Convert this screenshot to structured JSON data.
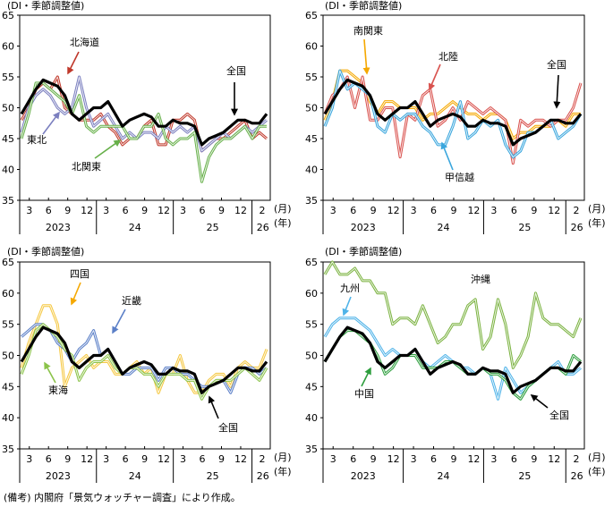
{
  "footnote": "(備考) 内閣府「景気ウォッチャー調査」により作成。",
  "chart_data": [
    {
      "type": "line",
      "unit_label": "(DI・季節調整値)",
      "ylim": [
        35,
        65
      ],
      "yticks": [
        35,
        40,
        45,
        50,
        55,
        60,
        65
      ],
      "month_ticks": [
        "3",
        "6",
        "9",
        "12",
        "3",
        "6",
        "9",
        "12",
        "3",
        "6",
        "9",
        "12",
        "2"
      ],
      "year_labels": [
        "2023",
        "24",
        "25",
        "26"
      ],
      "month_unit": "(月)",
      "year_unit": "(年)",
      "series": [
        {
          "name": "北海道",
          "color": "#c0392b",
          "values": [
            48,
            50,
            53,
            54,
            53,
            55,
            50,
            49,
            48,
            48,
            48,
            49,
            47,
            46,
            44,
            45,
            45,
            47,
            48,
            44,
            44,
            48,
            48,
            49,
            48,
            43,
            44,
            45,
            45,
            46,
            47,
            48,
            45,
            46,
            45
          ]
        },
        {
          "name": "東北",
          "color": "#7b7fbf",
          "values": [
            46,
            50,
            52,
            53,
            52,
            50,
            49,
            50,
            55,
            50,
            47,
            48,
            49,
            47,
            45,
            46,
            45,
            46,
            46,
            45,
            47,
            46,
            47,
            46,
            47,
            43,
            44,
            45,
            46,
            45,
            46,
            47,
            46,
            47,
            48
          ]
        },
        {
          "name": "北関東",
          "color": "#67b04a",
          "values": [
            45,
            49,
            54,
            54,
            53,
            52,
            51,
            49,
            52,
            47,
            46,
            47,
            47,
            47,
            47,
            45,
            45,
            47,
            47,
            49,
            45,
            44,
            45,
            45,
            46,
            38,
            42,
            44,
            45,
            45,
            46,
            47,
            45,
            47,
            47
          ]
        },
        {
          "name": "全国",
          "color": "#000000",
          "values": [
            49,
            51,
            53,
            54.5,
            54,
            53.5,
            52,
            49,
            48,
            49,
            50,
            50,
            51,
            49,
            47,
            48,
            48.5,
            49,
            48.5,
            47,
            47,
            48,
            47.5,
            47.5,
            47,
            44,
            45,
            45.5,
            46,
            47,
            48,
            48,
            47.5,
            47.5,
            49
          ]
        }
      ],
      "annotations": [
        "北海道",
        "東北",
        "北関東",
        "全国"
      ]
    },
    {
      "type": "line",
      "unit_label": "(DI・季節調整値)",
      "ylim": [
        35,
        65
      ],
      "yticks": [
        35,
        40,
        45,
        50,
        55,
        60,
        65
      ],
      "month_ticks": [
        "3",
        "6",
        "9",
        "12",
        "3",
        "6",
        "9",
        "12",
        "3",
        "6",
        "9",
        "12",
        "2"
      ],
      "year_labels": [
        "2023",
        "24",
        "25",
        "26"
      ],
      "month_unit": "(月)",
      "year_unit": "(年)",
      "series": [
        {
          "name": "南関東",
          "color": "#f5a800",
          "values": [
            48,
            51,
            56,
            56,
            55,
            54,
            51,
            49,
            51,
            51,
            50,
            50,
            50,
            48,
            49,
            49,
            50,
            51,
            50,
            49,
            49,
            48,
            49,
            49,
            48,
            45,
            46,
            46,
            47,
            47,
            47,
            48,
            47,
            49,
            49
          ]
        },
        {
          "name": "北陸",
          "color": "#d9534f",
          "values": [
            49,
            52,
            53,
            55,
            50,
            55,
            48,
            48,
            50,
            50,
            42,
            49,
            48,
            52,
            53,
            47,
            48,
            50,
            48,
            51,
            50,
            49,
            50,
            49,
            48,
            41,
            48,
            47,
            48,
            48,
            47,
            48,
            48,
            50,
            54
          ]
        },
        {
          "name": "甲信越",
          "color": "#3aa6dd",
          "values": [
            47,
            50,
            56,
            53,
            54,
            53,
            52,
            47,
            46,
            49,
            48,
            49,
            49,
            47,
            46,
            44,
            44,
            47,
            51,
            45,
            46,
            48,
            47,
            48,
            44,
            42,
            43,
            46,
            46,
            47,
            48,
            45,
            46,
            47,
            49
          ]
        },
        {
          "name": "全国",
          "color": "#000000",
          "values": [
            49,
            51,
            53,
            54.5,
            54,
            53.5,
            52,
            49,
            48,
            49,
            50,
            50,
            51,
            49,
            47,
            48,
            48.5,
            49,
            48.5,
            47,
            47,
            48,
            47.5,
            47.5,
            47,
            44,
            45,
            45.5,
            46,
            47,
            48,
            48,
            47.5,
            47.5,
            49
          ]
        }
      ],
      "annotations": [
        "南関東",
        "北陸",
        "全国",
        "甲信越"
      ]
    },
    {
      "type": "line",
      "unit_label": "(DI・季節調整値)",
      "ylim": [
        35,
        65
      ],
      "yticks": [
        35,
        40,
        45,
        50,
        55,
        60,
        65
      ],
      "month_ticks": [
        "3",
        "6",
        "9",
        "12",
        "3",
        "6",
        "9",
        "12",
        "3",
        "6",
        "9",
        "12",
        "2"
      ],
      "year_labels": [
        "2023",
        "24",
        "25",
        "26"
      ],
      "month_unit": "(月)",
      "year_unit": "(年)",
      "series": [
        {
          "name": "四国",
          "color": "#f5c842",
          "values": [
            48,
            52,
            55,
            58,
            58,
            55,
            45,
            48,
            49,
            50,
            48,
            49,
            49,
            47,
            47,
            48,
            49,
            47,
            48,
            44,
            47,
            47,
            50,
            46,
            44,
            44,
            46,
            47,
            47,
            45,
            48,
            49,
            48,
            48,
            51
          ]
        },
        {
          "name": "近畿",
          "color": "#5b7fc7",
          "values": [
            53,
            54,
            55,
            55,
            54,
            52,
            51,
            49,
            51,
            52,
            54,
            50,
            51,
            49,
            47,
            47,
            48,
            48,
            48,
            46,
            48,
            48,
            47,
            47,
            46,
            45,
            45,
            46,
            46,
            44,
            47,
            48,
            48,
            47,
            48
          ]
        },
        {
          "name": "東海",
          "color": "#8bc34a",
          "values": [
            47,
            50,
            54,
            55,
            54,
            53,
            51,
            50,
            46,
            48,
            49,
            49,
            50,
            48,
            47,
            48,
            48,
            47,
            47,
            45,
            47,
            47,
            47,
            46,
            46,
            43,
            45,
            46,
            46,
            46,
            47,
            48,
            47,
            46,
            48
          ]
        },
        {
          "name": "全国",
          "color": "#000000",
          "values": [
            49,
            51,
            53,
            54.5,
            54,
            53.5,
            52,
            49,
            48,
            49,
            50,
            50,
            51,
            49,
            47,
            48,
            48.5,
            49,
            48.5,
            47,
            47,
            48,
            47.5,
            47.5,
            47,
            44,
            45,
            45.5,
            46,
            47,
            48,
            48,
            47.5,
            47.5,
            49
          ]
        }
      ],
      "annotations": [
        "四国",
        "近畿",
        "東海",
        "全国"
      ]
    },
    {
      "type": "line",
      "unit_label": "(DI・季節調整値)",
      "ylim": [
        35,
        65
      ],
      "yticks": [
        35,
        40,
        45,
        50,
        55,
        60,
        65
      ],
      "month_ticks": [
        "3",
        "6",
        "9",
        "12",
        "3",
        "6",
        "9",
        "12",
        "3",
        "6",
        "9",
        "12",
        "2"
      ],
      "year_labels": [
        "2023",
        "24",
        "25",
        "26"
      ],
      "month_unit": "(月)",
      "year_unit": "(年)",
      "series": [
        {
          "name": "沖縄",
          "color": "#7cb342",
          "values": [
            63,
            65,
            63,
            63,
            64,
            62,
            62,
            60,
            60,
            55,
            56,
            56,
            55,
            58,
            55,
            52,
            53,
            55,
            55,
            58,
            59,
            51,
            53,
            59,
            55,
            48,
            50,
            53,
            60,
            56,
            55,
            55,
            54,
            53,
            56
          ]
        },
        {
          "name": "九州",
          "color": "#4fb3e8",
          "values": [
            53,
            55,
            56,
            56,
            56,
            55,
            54,
            52,
            50,
            51,
            50,
            50,
            51,
            49,
            48,
            49,
            50,
            49,
            48,
            48,
            47,
            48,
            47,
            43,
            48,
            46,
            44,
            45,
            46,
            47,
            48,
            49,
            47,
            47,
            48
          ]
        },
        {
          "name": "中国",
          "color": "#2e9e3e",
          "values": [
            49,
            51,
            53,
            54,
            54,
            53,
            52,
            50,
            47,
            48,
            50,
            50,
            50,
            48,
            48,
            48,
            49,
            49,
            48,
            47,
            47,
            48,
            47,
            47,
            46,
            44,
            43,
            45,
            46,
            47,
            48,
            48,
            47,
            50,
            49
          ]
        },
        {
          "name": "全国",
          "color": "#000000",
          "values": [
            49,
            51,
            53,
            54.5,
            54,
            53.5,
            52,
            49,
            48,
            49,
            50,
            50,
            51,
            49,
            47,
            48,
            48.5,
            49,
            48.5,
            47,
            47,
            48,
            47.5,
            47.5,
            47,
            44,
            45,
            45.5,
            46,
            47,
            48,
            48,
            47.5,
            47.5,
            49
          ]
        }
      ],
      "annotations": [
        "沖縄",
        "九州",
        "中国",
        "全国"
      ]
    }
  ]
}
